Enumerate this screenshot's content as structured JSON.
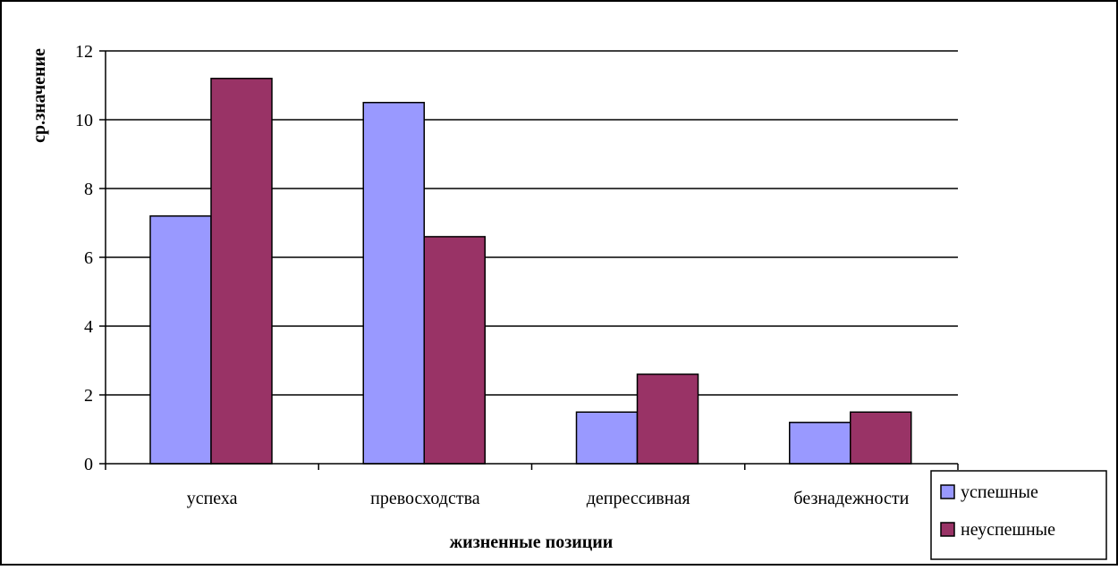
{
  "chart_data": {
    "type": "bar",
    "categories": [
      "успеха",
      "превосходства",
      "депрессивная",
      "безнадежности"
    ],
    "series": [
      {
        "name": "успешные",
        "values": [
          7.2,
          10.5,
          1.5,
          1.2
        ],
        "color": "#9999ff"
      },
      {
        "name": "неуспешные",
        "values": [
          11.2,
          6.6,
          2.6,
          1.5
        ],
        "color": "#993366"
      }
    ],
    "xlabel": "жизненные позиции",
    "ylabel": "ср.значение",
    "ylim": [
      0,
      12
    ],
    "yticks": [
      0,
      2,
      4,
      6,
      8,
      10,
      12
    ],
    "grid": true,
    "legend_position": "bottom-right"
  }
}
